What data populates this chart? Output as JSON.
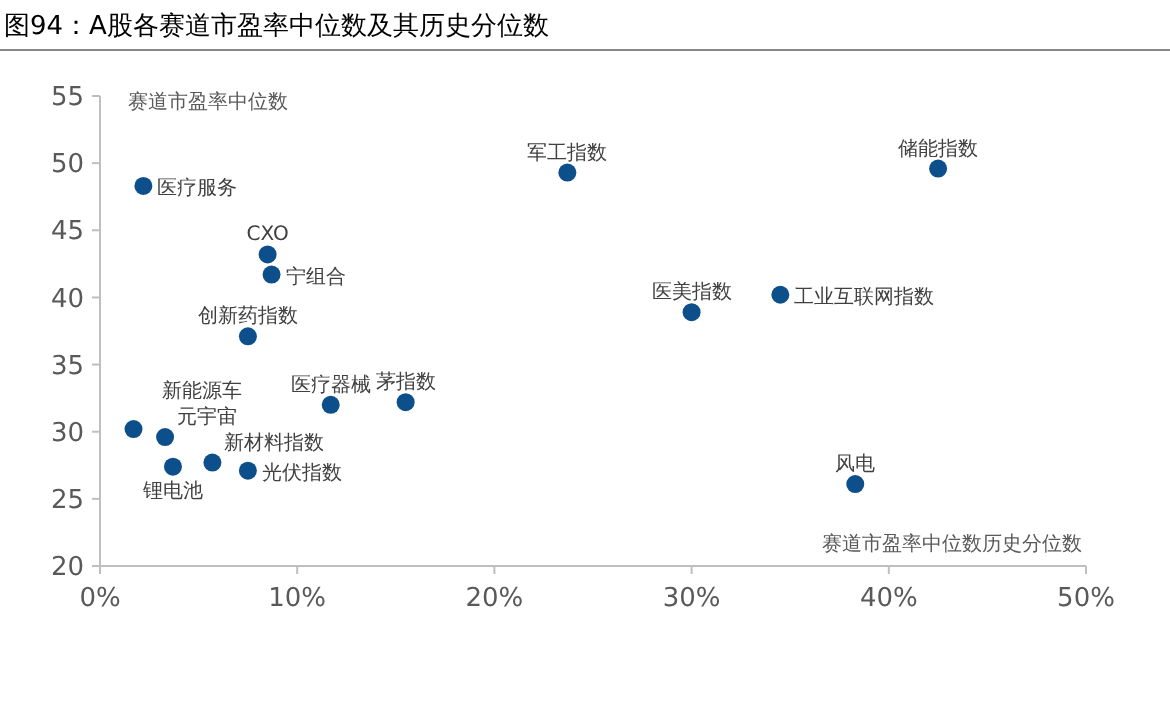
{
  "chart_data": {
    "type": "scatter",
    "title": "图94：A股各赛道市盈率中位数及其历史分位数",
    "xlabel": "赛道市盈率中位数历史分位数",
    "ylabel": "赛道市盈率中位数",
    "xlim": [
      0,
      50
    ],
    "xticks": [
      {
        "value": 0,
        "label": "0%"
      },
      {
        "value": 10,
        "label": "10%"
      },
      {
        "value": 20,
        "label": "20%"
      },
      {
        "value": 30,
        "label": "30%"
      },
      {
        "value": 40,
        "label": "40%"
      },
      {
        "value": 50,
        "label": "50%"
      }
    ],
    "ylim": [
      20,
      55
    ],
    "yticks": [
      20,
      25,
      30,
      35,
      40,
      45,
      50,
      55
    ],
    "grid": false,
    "marker": "circle",
    "series": [
      {
        "name": "医疗服务",
        "color": "#0d4f8b",
        "x": [
          2.2
        ],
        "values": [
          48.3
        ]
      },
      {
        "name": "CXO",
        "color": "#0d4f8b",
        "x": [
          8.5
        ],
        "values": [
          43.2
        ]
      },
      {
        "name": "宁组合",
        "color": "#0d4f8b",
        "x": [
          8.7
        ],
        "values": [
          41.7
        ]
      },
      {
        "name": "创新药指数",
        "color": "#0d4f8b",
        "x": [
          7.5
        ],
        "values": [
          37.1
        ]
      },
      {
        "name": "医疗器械",
        "color": "#0d4f8b",
        "x": [
          11.7
        ],
        "values": [
          32.0
        ]
      },
      {
        "name": "茅指数",
        "color": "#0d4f8b",
        "x": [
          15.5
        ],
        "values": [
          32.2
        ]
      },
      {
        "name": "新能源车",
        "color": "#0d4f8b",
        "x": [
          1.7
        ],
        "values": [
          30.2
        ]
      },
      {
        "name": "元宇宙",
        "color": "#0d4f8b",
        "x": [
          3.3
        ],
        "values": [
          29.6
        ]
      },
      {
        "name": "锂电池",
        "color": "#0d4f8b",
        "x": [
          3.7
        ],
        "values": [
          27.4
        ]
      },
      {
        "name": "新材料指数",
        "color": "#0d4f8b",
        "x": [
          5.7
        ],
        "values": [
          27.7
        ]
      },
      {
        "name": "光伏指数",
        "color": "#0d4f8b",
        "x": [
          7.5
        ],
        "values": [
          27.1
        ]
      },
      {
        "name": "军工指数",
        "color": "#0d4f8b",
        "x": [
          23.7
        ],
        "values": [
          49.3
        ]
      },
      {
        "name": "储能指数",
        "color": "#0d4f8b",
        "x": [
          42.5
        ],
        "values": [
          49.6
        ]
      },
      {
        "name": "医美指数",
        "color": "#0d4f8b",
        "x": [
          30.0
        ],
        "values": [
          38.9
        ]
      },
      {
        "name": "工业互联网指数",
        "color": "#0d4f8b",
        "x": [
          34.5
        ],
        "values": [
          40.2
        ]
      },
      {
        "name": "风电",
        "color": "#0d4f8b",
        "x": [
          38.3
        ],
        "values": [
          26.1
        ]
      }
    ]
  }
}
